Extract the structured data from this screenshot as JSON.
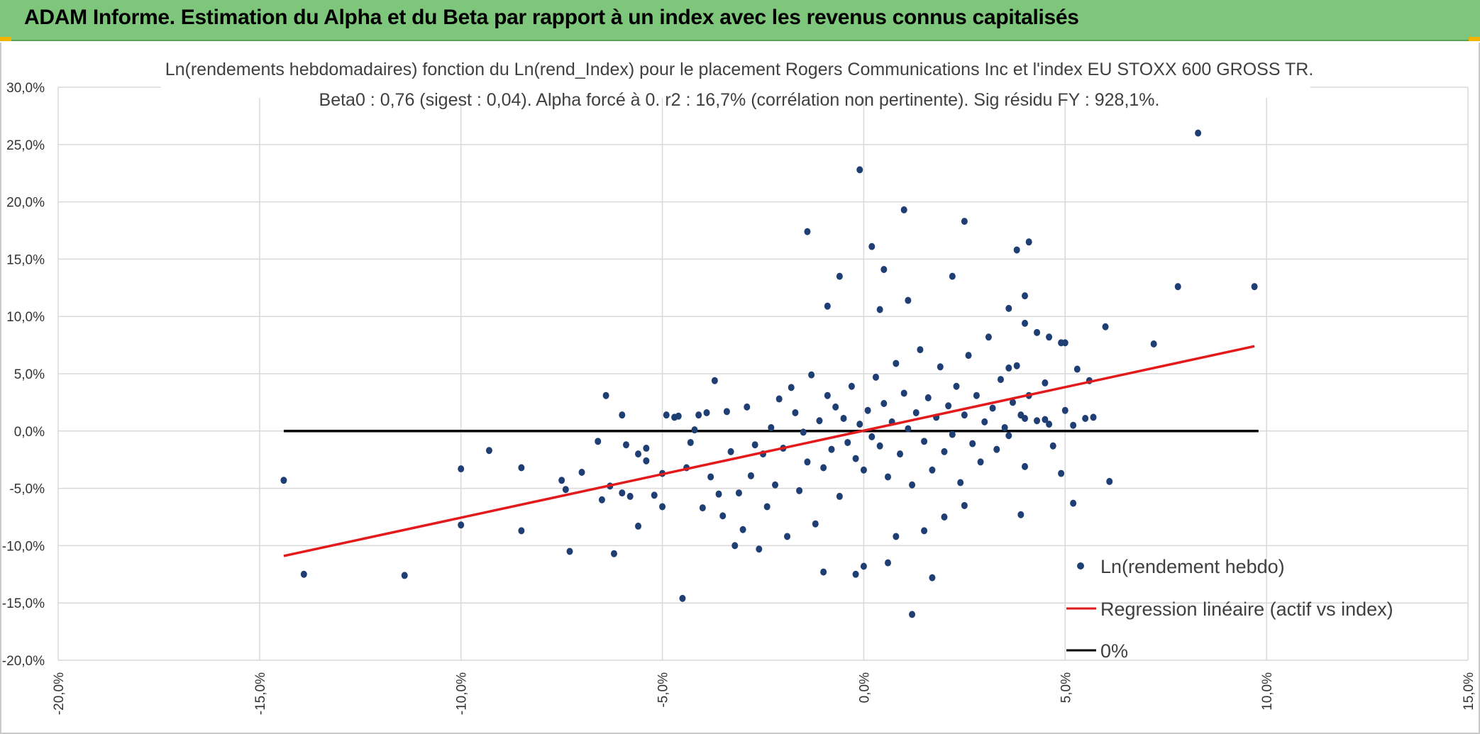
{
  "banner": {
    "title": "ADAM Informe. Estimation du Alpha et du Beta par rapport à un index avec les revenus connus capitalisés",
    "background": "#7dc67b",
    "corner_accent": "#f2b300"
  },
  "chart_data": {
    "type": "scatter",
    "title": "Ln(rendements hebdomadaires) fonction du Ln(rend_Index) pour le placement Rogers Communications Inc et l'index EU STOXX 600 GROSS TR.",
    "subtitle": "Beta0 : 0,76 (sigest : 0,04). Alpha forcé à 0. r2 : 16,7% (corrélation non pertinente). Sig résidu FY : 928,1%.",
    "xlabel": "",
    "ylabel": "",
    "xlim": [
      -0.2,
      0.15
    ],
    "ylim": [
      -0.2,
      0.3
    ],
    "x_ticks": [
      -0.2,
      -0.15,
      -0.1,
      -0.05,
      0.0,
      0.05,
      0.1,
      0.15
    ],
    "x_tick_labels": [
      "-20,0%",
      "-15,0%",
      "-10,0%",
      "-5,0%",
      "0,0%",
      "5,0%",
      "10,0%",
      "15,0%"
    ],
    "y_ticks": [
      0.3,
      0.25,
      0.2,
      0.15,
      0.1,
      0.05,
      0.0,
      -0.05,
      -0.1,
      -0.15,
      -0.2
    ],
    "y_tick_labels": [
      "30,0%",
      "25,0%",
      "20,0%",
      "15,0%",
      "10,0%",
      "5,0%",
      "0,0%",
      "-5,0%",
      "-10,0%",
      "-15,0%",
      "-20,0%"
    ],
    "grid": true,
    "legend_position": "bottom-right",
    "series": [
      {
        "name": "Ln(rendement hebdo)",
        "kind": "scatter",
        "color": "#1f3e73",
        "points": [
          [
            -0.144,
            -0.043
          ],
          [
            -0.139,
            -0.125
          ],
          [
            -0.114,
            -0.126
          ],
          [
            -0.1,
            -0.033
          ],
          [
            -0.1,
            -0.082
          ],
          [
            -0.093,
            -0.017
          ],
          [
            -0.085,
            -0.032
          ],
          [
            -0.085,
            -0.087
          ],
          [
            -0.075,
            -0.043
          ],
          [
            -0.074,
            -0.051
          ],
          [
            -0.073,
            -0.105
          ],
          [
            -0.07,
            -0.036
          ],
          [
            -0.066,
            -0.009
          ],
          [
            -0.065,
            -0.06
          ],
          [
            -0.064,
            0.031
          ],
          [
            -0.063,
            -0.048
          ],
          [
            -0.062,
            -0.107
          ],
          [
            -0.06,
            0.014
          ],
          [
            -0.06,
            -0.054
          ],
          [
            -0.058,
            -0.057
          ],
          [
            -0.059,
            -0.012
          ],
          [
            -0.056,
            -0.02
          ],
          [
            -0.056,
            -0.083
          ],
          [
            -0.054,
            -0.026
          ],
          [
            -0.054,
            -0.015
          ],
          [
            -0.052,
            -0.056
          ],
          [
            -0.05,
            -0.037
          ],
          [
            -0.05,
            -0.066
          ],
          [
            -0.049,
            0.014
          ],
          [
            -0.047,
            0.012
          ],
          [
            -0.046,
            0.013
          ],
          [
            -0.045,
            -0.146
          ],
          [
            -0.044,
            -0.032
          ],
          [
            -0.043,
            -0.01
          ],
          [
            -0.042,
            0.001
          ],
          [
            -0.041,
            0.014
          ],
          [
            -0.04,
            -0.067
          ],
          [
            -0.039,
            0.016
          ],
          [
            -0.038,
            -0.04
          ],
          [
            -0.037,
            0.044
          ],
          [
            -0.036,
            -0.055
          ],
          [
            -0.035,
            -0.074
          ],
          [
            -0.034,
            0.017
          ],
          [
            -0.033,
            -0.018
          ],
          [
            -0.032,
            -0.1
          ],
          [
            -0.031,
            -0.054
          ],
          [
            -0.03,
            -0.086
          ],
          [
            -0.029,
            0.021
          ],
          [
            -0.028,
            -0.039
          ],
          [
            -0.027,
            -0.012
          ],
          [
            -0.026,
            -0.103
          ],
          [
            -0.025,
            -0.02
          ],
          [
            -0.024,
            -0.066
          ],
          [
            -0.023,
            0.003
          ],
          [
            -0.022,
            -0.047
          ],
          [
            -0.021,
            0.028
          ],
          [
            -0.02,
            -0.015
          ],
          [
            -0.019,
            -0.092
          ],
          [
            -0.018,
            0.038
          ],
          [
            -0.017,
            0.016
          ],
          [
            -0.016,
            -0.052
          ],
          [
            -0.015,
            -0.001
          ],
          [
            -0.014,
            -0.027
          ],
          [
            -0.013,
            0.049
          ],
          [
            -0.012,
            -0.081
          ],
          [
            -0.011,
            0.009
          ],
          [
            -0.01,
            -0.032
          ],
          [
            -0.009,
            0.031
          ],
          [
            -0.008,
            -0.016
          ],
          [
            -0.007,
            0.021
          ],
          [
            -0.006,
            -0.057
          ],
          [
            -0.005,
            0.011
          ],
          [
            -0.004,
            -0.01
          ],
          [
            -0.003,
            0.039
          ],
          [
            -0.002,
            -0.024
          ],
          [
            -0.001,
            0.006
          ],
          [
            0.0,
            -0.034
          ],
          [
            0.001,
            0.018
          ],
          [
            0.002,
            -0.005
          ],
          [
            0.003,
            0.047
          ],
          [
            0.004,
            -0.013
          ],
          [
            0.005,
            0.024
          ],
          [
            0.006,
            -0.04
          ],
          [
            0.007,
            0.008
          ],
          [
            0.008,
            0.059
          ],
          [
            0.009,
            -0.02
          ],
          [
            0.01,
            0.033
          ],
          [
            0.011,
            0.002
          ],
          [
            0.012,
            -0.047
          ],
          [
            0.013,
            0.016
          ],
          [
            0.014,
            0.071
          ],
          [
            0.015,
            -0.009
          ],
          [
            0.016,
            0.029
          ],
          [
            0.017,
            -0.034
          ],
          [
            0.018,
            0.012
          ],
          [
            0.019,
            0.056
          ],
          [
            0.02,
            -0.018
          ],
          [
            0.021,
            0.022
          ],
          [
            0.022,
            -0.003
          ],
          [
            0.023,
            0.039
          ],
          [
            0.024,
            -0.045
          ],
          [
            0.025,
            0.014
          ],
          [
            0.026,
            0.066
          ],
          [
            0.027,
            -0.011
          ],
          [
            0.028,
            0.031
          ],
          [
            0.029,
            -0.027
          ],
          [
            0.03,
            0.008
          ],
          [
            0.031,
            0.082
          ],
          [
            0.032,
            0.02
          ],
          [
            0.033,
            -0.016
          ],
          [
            0.034,
            0.045
          ],
          [
            0.035,
            0.003
          ],
          [
            0.036,
            -0.004
          ],
          [
            0.037,
            0.025
          ],
          [
            0.038,
            0.057
          ],
          [
            0.039,
            0.014
          ],
          [
            0.04,
            0.094
          ],
          [
            0.041,
            0.031
          ],
          [
            0.043,
            0.009
          ],
          [
            0.045,
            0.042
          ],
          [
            0.047,
            -0.013
          ],
          [
            0.049,
            0.077
          ],
          [
            0.05,
            0.018
          ],
          [
            0.052,
            0.005
          ],
          [
            0.055,
            0.011
          ],
          [
            -0.001,
            0.228
          ],
          [
            -0.014,
            0.174
          ],
          [
            0.002,
            0.161
          ],
          [
            0.01,
            0.193
          ],
          [
            0.025,
            0.183
          ],
          [
            0.005,
            0.141
          ],
          [
            -0.006,
            0.135
          ],
          [
            0.022,
            0.135
          ],
          [
            -0.009,
            0.109
          ],
          [
            0.011,
            0.114
          ],
          [
            0.004,
            0.106
          ],
          [
            0.036,
            0.107
          ],
          [
            0.038,
            0.158
          ],
          [
            0.041,
            0.165
          ],
          [
            0.04,
            0.118
          ],
          [
            0.036,
            0.055
          ],
          [
            0.04,
            0.011
          ],
          [
            0.043,
            0.086
          ],
          [
            0.046,
            0.082
          ],
          [
            0.05,
            0.077
          ],
          [
            0.052,
            -0.063
          ],
          [
            0.049,
            -0.037
          ],
          [
            0.039,
            -0.073
          ],
          [
            0.04,
            -0.031
          ],
          [
            0.06,
            0.091
          ],
          [
            0.072,
            0.076
          ],
          [
            0.078,
            0.126
          ],
          [
            0.083,
            0.26
          ],
          [
            0.097,
            0.126
          ],
          [
            0.061,
            -0.044
          ],
          [
            0.056,
            0.044
          ],
          [
            0.053,
            0.054
          ],
          [
            0.057,
            0.012
          ],
          [
            0.045,
            0.01
          ],
          [
            0.046,
            0.006
          ],
          [
            -0.01,
            -0.123
          ],
          [
            -0.002,
            -0.125
          ],
          [
            0.0,
            -0.118
          ],
          [
            0.006,
            -0.115
          ],
          [
            0.012,
            -0.16
          ],
          [
            0.017,
            -0.128
          ],
          [
            0.02,
            -0.075
          ],
          [
            0.025,
            -0.065
          ],
          [
            0.015,
            -0.087
          ],
          [
            0.008,
            -0.092
          ]
        ],
        "note_dense_core": []
      },
      {
        "name": "Regression linéaire (actif vs index)",
        "kind": "line",
        "color": "#e31a1c",
        "points": [
          [
            -0.144,
            -0.109
          ],
          [
            0.097,
            0.074
          ]
        ]
      },
      {
        "name": "0%",
        "kind": "line",
        "color": "#000000",
        "points": [
          [
            -0.144,
            0.0
          ],
          [
            0.098,
            0.0
          ]
        ]
      }
    ]
  }
}
